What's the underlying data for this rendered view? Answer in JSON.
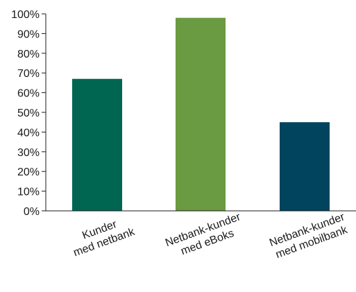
{
  "chart_data": {
    "type": "bar",
    "title": "",
    "xlabel": "",
    "ylabel": "",
    "ylim": [
      0,
      100
    ],
    "y_ticks": [
      "0%",
      "10%",
      "20%",
      "30%",
      "40%",
      "50%",
      "60%",
      "70%",
      "80%",
      "90%",
      "100%"
    ],
    "grid": false,
    "legend": "none",
    "categories": [
      [
        "Kunder",
        "med netbank"
      ],
      [
        "Netbank-kunder",
        "med eBoks"
      ],
      [
        "Netbank-kunder",
        "med mobilbank"
      ]
    ],
    "values": [
      67,
      98,
      45
    ],
    "colors": [
      "#006651",
      "#6a9a41",
      "#00445e"
    ]
  }
}
